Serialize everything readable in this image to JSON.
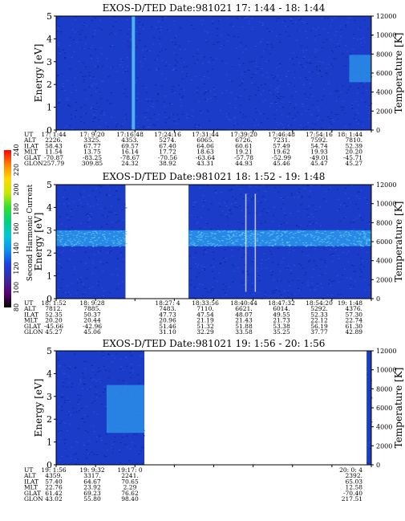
{
  "chart_data": [
    {
      "type": "heatmap",
      "title": "EXOS-D/TED    Date:981021  17: 1:44 - 18: 1:44",
      "ylabel": "Energy [eV]",
      "y2label": "Temperature [K]",
      "ylim": [
        0,
        5
      ],
      "y2lim": [
        0,
        12000
      ],
      "yticks": [
        "0",
        "1",
        "2",
        "3",
        "4",
        "5"
      ],
      "y2ticks": [
        "0",
        "2000",
        "4000",
        "6000",
        "8000",
        "10000",
        "12000"
      ],
      "coverage": [
        [
          0,
          1
        ]
      ],
      "band": [],
      "rows": [
        {
          "label": "UT",
          "values": [
            "17: 1:44",
            "17: 9:20",
            "17:16:48",
            "17:24:16",
            "17:31:44",
            "17:39:20",
            "17:46:48",
            "17:54:16",
            "18: 1:44"
          ]
        },
        {
          "label": "ALT",
          "values": [
            "2226.",
            "3325.",
            "4353.",
            "5274.",
            "6065.",
            "6726.",
            "7231.",
            "7592.",
            "7810."
          ]
        },
        {
          "label": "ILAT",
          "values": [
            "58.43",
            "67.77",
            "69.57",
            "67.40",
            "64.06",
            "60.61",
            "57.49",
            "54.74",
            "52.39"
          ]
        },
        {
          "label": "MLT",
          "values": [
            "11.54",
            "13.75",
            "16.14",
            "17.72",
            "18.63",
            "19.21",
            "19.62",
            "19.93",
            "20.20"
          ]
        },
        {
          "label": "GLAT",
          "values": [
            "-70.87",
            "-83.25",
            "-78.67",
            "-70.56",
            "-63.64",
            "-57.78",
            "-52.99",
            "-49.01",
            "-45.71"
          ]
        },
        {
          "label": "GLON",
          "values": [
            "257.79",
            "309.85",
            "24.32",
            "38.92",
            "43.31",
            "44.93",
            "45.46",
            "45.47",
            "45.27"
          ]
        }
      ]
    },
    {
      "type": "heatmap",
      "title": "EXOS-D/TED    Date:981021  18: 1:52 - 19: 1:48",
      "ylabel": "Energy [eV]",
      "y2label": "Temperature [K]",
      "ylim": [
        0,
        5
      ],
      "y2lim": [
        0,
        12000
      ],
      "yticks": [
        "0",
        "1",
        "2",
        "3",
        "4",
        "5"
      ],
      "y2ticks": [
        "0",
        "2000",
        "4000",
        "6000",
        "8000",
        "10000",
        "12000"
      ],
      "coverage": [
        [
          0,
          0.22
        ],
        [
          0.42,
          1
        ]
      ],
      "band": [
        2.3,
        3.0
      ],
      "rows": [
        {
          "label": "UT",
          "values": [
            "18: 1:52",
            "18: 9:28",
            "",
            "18:27: 4",
            "18:33:56",
            "18:40:44",
            "18:47:32",
            "18:54:20",
            "19: 1:48"
          ]
        },
        {
          "label": "ALT",
          "values": [
            "7812.",
            "7885.",
            "",
            "7483.",
            "7110.",
            "6621.",
            "6014.",
            "5292.",
            "4376."
          ]
        },
        {
          "label": "ILAT",
          "values": [
            "52.35",
            "50.37",
            "",
            "47.73",
            "47.54",
            "48.07",
            "49.55",
            "52.33",
            "57.30"
          ]
        },
        {
          "label": "MLT",
          "values": [
            "20.20",
            "20.44",
            "",
            "20.96",
            "21.19",
            "21.43",
            "21.73",
            "22.12",
            "22.74"
          ]
        },
        {
          "label": "GLAT",
          "values": [
            "-45.66",
            "-42.96",
            "",
            "51.46",
            "51.32",
            "51.88",
            "53.38",
            "56.19",
            "61.30"
          ]
        },
        {
          "label": "GLON",
          "values": [
            "45.27",
            "45.06",
            "",
            "31.10",
            "32.29",
            "33.58",
            "35.25",
            "37.77",
            "42.89"
          ]
        }
      ]
    },
    {
      "type": "heatmap",
      "title": "EXOS-D/TED    Date:981021  19: 1:56 - 20: 1:56",
      "ylabel": "Energy [eV]",
      "y2label": "Temperature [K]",
      "ylim": [
        0,
        5
      ],
      "y2lim": [
        0,
        12000
      ],
      "yticks": [
        "0",
        "1",
        "2",
        "3",
        "4",
        "5"
      ],
      "y2ticks": [
        "0",
        "2000",
        "4000",
        "6000",
        "8000",
        "10000",
        "12000"
      ],
      "coverage": [
        [
          0,
          0.28
        ],
        [
          0.985,
          1
        ]
      ],
      "band": [],
      "rows": [
        {
          "label": "UT",
          "values": [
            "19: 1:56",
            "19: 9:32",
            "19:17: 0",
            "",
            "",
            "",
            "",
            "",
            "20: 0: 4"
          ]
        },
        {
          "label": "ALT",
          "values": [
            "4359.",
            "3317.",
            "2241.",
            "",
            "",
            "",
            "",
            "",
            "2392."
          ]
        },
        {
          "label": "ILAT",
          "values": [
            "57.40",
            "64.67",
            "70.65",
            "",
            "",
            "",
            "",
            "",
            "65.03"
          ]
        },
        {
          "label": "MLT",
          "values": [
            "22.76",
            "23.92",
            "2.29",
            "",
            "",
            "",
            "",
            "",
            "12.58"
          ]
        },
        {
          "label": "GLAT",
          "values": [
            "61.42",
            "69.23",
            "76.62",
            "",
            "",
            "",
            "",
            "",
            "-70.40"
          ]
        },
        {
          "label": "GLON",
          "values": [
            "43.02",
            "55.80",
            "98.40",
            "",
            "",
            "",
            "",
            "",
            "217.51"
          ]
        }
      ]
    }
  ],
  "colorbar": {
    "label": "Second Harmonic Current",
    "ticks": [
      "80",
      "100",
      "120",
      "140",
      "160",
      "180",
      "200",
      "220",
      "240"
    ],
    "colors": [
      "#000000",
      "#5a0070",
      "#3a2aa0",
      "#1a40e0",
      "#0a90f0",
      "#00c8d8",
      "#00d080",
      "#30e030",
      "#c8e800",
      "#ffd800",
      "#ff8000",
      "#ff0000"
    ]
  },
  "colors": {
    "background": "#1a3cc8",
    "speckle": "#2f5ae8",
    "band": "#2fa0f0",
    "bandCore": "#55c8f5",
    "dark": "#0b1f8a"
  }
}
